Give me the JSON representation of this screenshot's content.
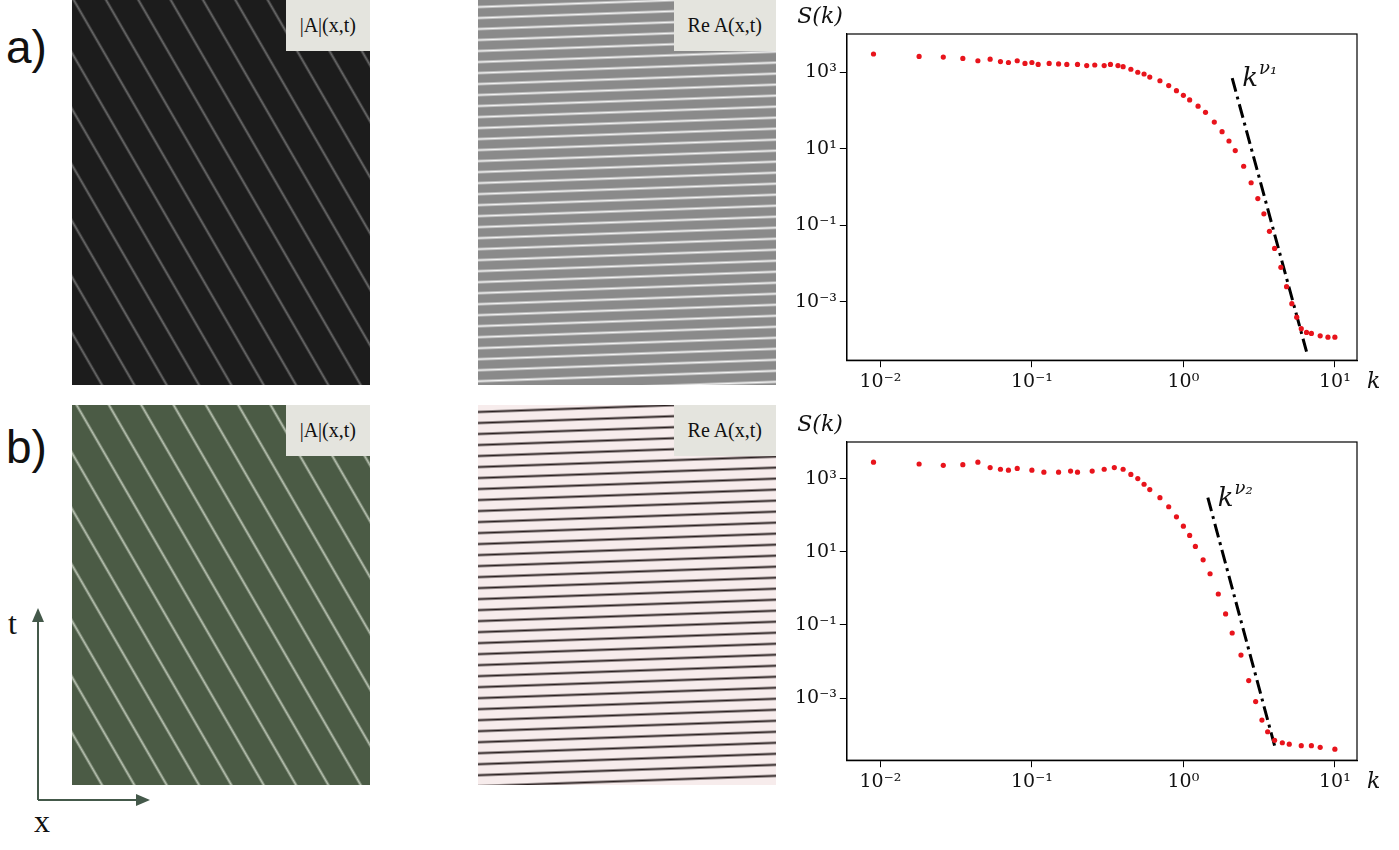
{
  "panels": [
    {
      "letter": "a)",
      "images": [
        {
          "label": "|A|(x,t)",
          "color": "#1c1c1c"
        },
        {
          "label": "Re A(x,t)",
          "color": "#8a8a8a"
        }
      ]
    },
    {
      "letter": "b)",
      "images": [
        {
          "label": "|A|(x,t)",
          "color": "#4b5b45"
        },
        {
          "label": "Re A(x,t)",
          "color": "#f7ecec"
        }
      ]
    }
  ],
  "axes": {
    "horizontal": "x",
    "vertical": "t",
    "color": "#44594a"
  },
  "chart_data": [
    {
      "type": "scatter",
      "log": true,
      "grid": false,
      "xlabel": "k",
      "ylabel": "S(k)",
      "xlim": [
        0.006,
        14
      ],
      "ylim": [
        3e-05,
        10000
      ],
      "xticks": [
        {
          "value": 0.01,
          "label": "10⁻²"
        },
        {
          "value": 0.1,
          "label": "10⁻¹"
        },
        {
          "value": 1,
          "label": "10⁰"
        },
        {
          "value": 10,
          "label": "10¹"
        }
      ],
      "yticks": [
        {
          "value": 0.001,
          "label": "10⁻³"
        },
        {
          "value": 0.1,
          "label": "10⁻¹"
        },
        {
          "value": 10,
          "label": "10¹"
        },
        {
          "value": 1000,
          "label": "10³"
        }
      ],
      "series": [
        {
          "type": "scatter",
          "color": "#e8141c",
          "marker": "circle",
          "x": [
            0.009,
            0.018,
            0.026,
            0.035,
            0.044,
            0.053,
            0.062,
            0.07,
            0.08,
            0.09,
            0.1,
            0.11,
            0.13,
            0.15,
            0.17,
            0.2,
            0.23,
            0.26,
            0.3,
            0.33,
            0.37,
            0.4,
            0.45,
            0.5,
            0.55,
            0.6,
            0.7,
            0.8,
            0.9,
            1.0,
            1.1,
            1.25,
            1.4,
            1.6,
            1.8,
            2.0,
            2.2,
            2.5,
            2.8,
            3.1,
            3.4,
            3.7,
            4.0,
            4.4,
            4.8,
            5.2,
            5.6,
            6.0,
            6.5,
            7,
            8,
            9,
            10
          ],
          "values": [
            3000,
            2600,
            2500,
            2300,
            2000,
            2200,
            1900,
            1800,
            2000,
            1700,
            1800,
            1600,
            1700,
            1650,
            1600,
            1600,
            1500,
            1550,
            1500,
            1600,
            1500,
            1400,
            1200,
            1000,
            900,
            750,
            600,
            450,
            330,
            250,
            190,
            130,
            90,
            50,
            28,
            16,
            9,
            3.5,
            1.3,
            0.5,
            0.2,
            0.07,
            0.025,
            0.008,
            0.0025,
            0.0009,
            0.0004,
            0.0002,
            0.00016,
            0.00015,
            0.00013,
            0.00012,
            0.00012
          ]
        },
        {
          "type": "line",
          "color": "#000000",
          "line_style": "dashdot",
          "x": [
            2.1,
            6.5
          ],
          "values": [
            700,
            5e-05
          ],
          "label": {
            "base": "k",
            "exponent": "ν₁"
          }
        }
      ]
    },
    {
      "type": "scatter",
      "log": true,
      "grid": false,
      "xlabel": "k",
      "ylabel": "S(k)",
      "xlim": [
        0.006,
        14
      ],
      "ylim": [
        2e-05,
        10000
      ],
      "xticks": [
        {
          "value": 0.01,
          "label": "10⁻²"
        },
        {
          "value": 0.1,
          "label": "10⁻¹"
        },
        {
          "value": 1,
          "label": "10⁰"
        },
        {
          "value": 10,
          "label": "10¹"
        }
      ],
      "yticks": [
        {
          "value": 0.001,
          "label": "10⁻³"
        },
        {
          "value": 0.1,
          "label": "10⁻¹"
        },
        {
          "value": 10,
          "label": "10¹"
        },
        {
          "value": 1000,
          "label": "10³"
        }
      ],
      "series": [
        {
          "type": "scatter",
          "color": "#e8141c",
          "marker": "circle",
          "x": [
            0.009,
            0.018,
            0.026,
            0.035,
            0.044,
            0.053,
            0.062,
            0.07,
            0.08,
            0.1,
            0.12,
            0.15,
            0.18,
            0.2,
            0.25,
            0.3,
            0.35,
            0.4,
            0.45,
            0.5,
            0.55,
            0.6,
            0.7,
            0.8,
            0.9,
            1.0,
            1.1,
            1.2,
            1.35,
            1.5,
            1.7,
            1.9,
            2.1,
            2.4,
            2.7,
            3.0,
            3.3,
            3.6,
            4.0,
            4.5,
            5,
            6,
            7,
            8,
            10
          ],
          "values": [
            2800,
            2500,
            2300,
            2400,
            2800,
            2000,
            1800,
            1700,
            1900,
            1700,
            1500,
            1500,
            1600,
            1500,
            1600,
            1800,
            2000,
            1800,
            1300,
            1000,
            700,
            500,
            300,
            170,
            90,
            50,
            28,
            14,
            6,
            2.5,
            0.7,
            0.2,
            0.06,
            0.015,
            0.003,
            0.0008,
            0.00025,
            0.00012,
            7e-05,
            6e-05,
            5.5e-05,
            5e-05,
            5e-05,
            4.5e-05,
            4e-05
          ]
        },
        {
          "type": "line",
          "color": "#000000",
          "line_style": "dashdot",
          "x": [
            1.45,
            4.0
          ],
          "values": [
            300,
            5e-05
          ],
          "label": {
            "base": "k",
            "exponent": "ν₂"
          }
        }
      ]
    }
  ]
}
